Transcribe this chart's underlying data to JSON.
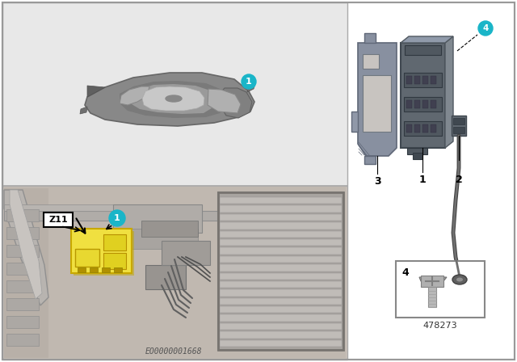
{
  "bg_color": "#ffffff",
  "teal_color": "#1ab5c8",
  "yellow_color": "#f0e040",
  "label_z11": "Z11",
  "footer_code": "EO0000001668",
  "catalog_number": "478273",
  "left_panel_bg": "#e0dedd",
  "top_subpanel_bg": "#e8e8e8",
  "engine_bay_bg": "#c8c0b8",
  "car_body_color": "#909090",
  "car_roof_color": "#a8a8a8",
  "car_highlight": "#c0c0c0",
  "car_dark": "#707070",
  "car_window_color": "#b8b8b8",
  "part_color": "#808890",
  "part_dark": "#606870",
  "part_light": "#a0a8b0",
  "screw_color": "#909090",
  "radiator_color": "#a0a0a0",
  "strut_color": "#b0b0b0",
  "panel_border": "#aaaaaa",
  "outer_border": "#999999"
}
